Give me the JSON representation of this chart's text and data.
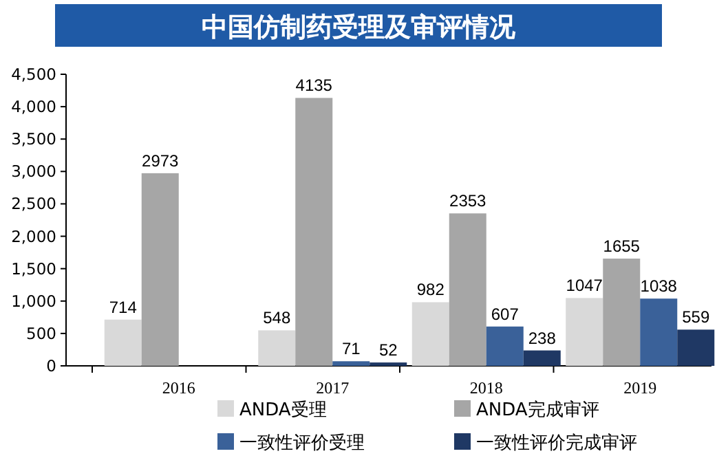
{
  "chart_data": {
    "type": "bar",
    "title": "中国仿制药受理及审评情况",
    "categories": [
      "2016",
      "2017",
      "2018",
      "2019"
    ],
    "series": [
      {
        "name": "ANDA受理",
        "color": "#d9d9d9",
        "values": [
          714,
          548,
          982,
          1047
        ]
      },
      {
        "name": "ANDA完成审评",
        "color": "#a6a6a6",
        "values": [
          2973,
          4135,
          2353,
          1655
        ]
      },
      {
        "name": "一致性评价受理",
        "color": "#3a6199",
        "values": [
          null,
          71,
          607,
          1038
        ]
      },
      {
        "name": "一致性评价完成审评",
        "color": "#1f3864",
        "values": [
          null,
          52,
          238,
          559
        ]
      }
    ],
    "ylim": [
      0,
      4500
    ],
    "yticks": [
      {
        "value": 0,
        "label": "0"
      },
      {
        "value": 500,
        "label": "500"
      },
      {
        "value": 1000,
        "label": "1,000"
      },
      {
        "value": 1500,
        "label": "1,500"
      },
      {
        "value": 2000,
        "label": "2,000"
      },
      {
        "value": 2500,
        "label": "2,500"
      },
      {
        "value": 3000,
        "label": "3,000"
      },
      {
        "value": 3500,
        "label": "3,500"
      },
      {
        "value": 4000,
        "label": "4,000"
      },
      {
        "value": 4500,
        "label": "4,500"
      }
    ],
    "data_labels": true,
    "legend": "bottom",
    "grid": false
  }
}
